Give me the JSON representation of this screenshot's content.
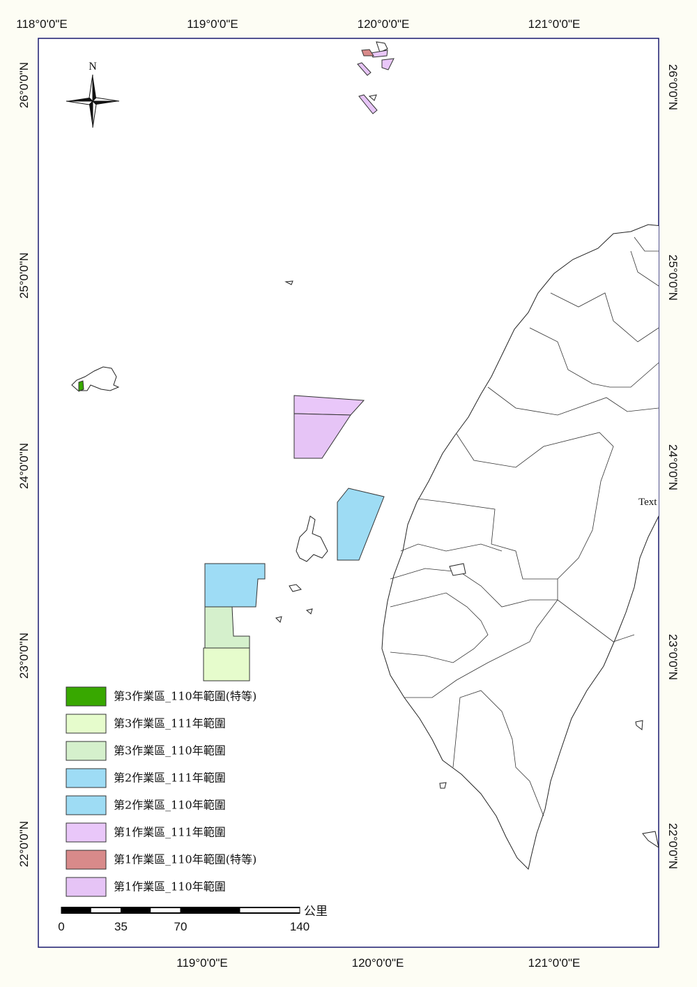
{
  "map": {
    "graticule": {
      "top": [
        "118°0'0\"E",
        "119°0'0\"E",
        "120°0'0\"E",
        "121°0'0\"E"
      ],
      "bottom": [
        "119°0'0\"E",
        "120°0'0\"E",
        "121°0'0\"E"
      ],
      "left": [
        "26°0'0\"N",
        "25°0'0\"N",
        "24°0'0\"N",
        "23°0'0\"N",
        "22°0'0\"N"
      ],
      "right": [
        "26°0'0\"N",
        "25°0'0\"N",
        "24°0'0\"N",
        "23°0'0\"N",
        "22°0'0\"N"
      ]
    },
    "north_label": "N",
    "annotation": "Text",
    "legend": [
      {
        "label": "第3作業區_110年範圍(特等)",
        "color": "#38a800"
      },
      {
        "label": "第3作業區_111年範圍",
        "color": "#e6fccc"
      },
      {
        "label": "第3作業區_110年範圍",
        "color": "#d5f0cc"
      },
      {
        "label": "第2作業區_111年範圍",
        "color": "#9edcf5"
      },
      {
        "label": "第2作業區_110年範圍",
        "color": "#9edcf4"
      },
      {
        "label": "第1作業區_111年範圍",
        "color": "#e9c7f9"
      },
      {
        "label": "第1作業區_110年範圍(特等)",
        "color": "#d88a8a"
      },
      {
        "label": "第1作業區_110年範圍",
        "color": "#e6c4f6"
      }
    ],
    "scale_bar": {
      "ticks": [
        0,
        35,
        70,
        140
      ],
      "unit": "公里"
    }
  }
}
